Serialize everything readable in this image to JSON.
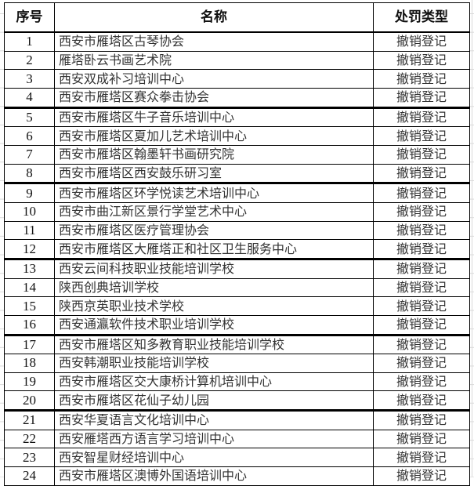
{
  "header": {
    "no": "序号",
    "name": "名称",
    "type": "处罚类型"
  },
  "rows": [
    {
      "no": "1",
      "name": "西安市雁塔区古琴协会",
      "type": "撤销登记"
    },
    {
      "no": "2",
      "name": "雁塔卧云书画艺术院",
      "type": "撤销登记"
    },
    {
      "no": "3",
      "name": "西安双成补习培训中心",
      "type": "撤销登记"
    },
    {
      "no": "4",
      "name": "西安市雁塔区赛众拳击协会",
      "type": "撤销登记"
    },
    {
      "no": "5",
      "name": "西安市雁塔区牛子音乐培训中心",
      "type": "撤销登记"
    },
    {
      "no": "6",
      "name": "西安市雁塔区夏加儿艺术培训中心",
      "type": "撤销登记"
    },
    {
      "no": "7",
      "name": "西安市雁塔区翰墨轩书画研究院",
      "type": "撤销登记"
    },
    {
      "no": "8",
      "name": "西安市雁塔区西安鼓乐研习室",
      "type": "撤销登记"
    },
    {
      "no": "9",
      "name": "西安市雁塔区环学悦读艺术培训中心",
      "type": "撤销登记"
    },
    {
      "no": "10",
      "name": "西安市曲江新区景行学堂艺术中心",
      "type": "撤销登记"
    },
    {
      "no": "11",
      "name": "西安市雁塔区医疗管理协会",
      "type": "撤销登记"
    },
    {
      "no": "12",
      "name": "西安市雁塔区大雁塔正和社区卫生服务中心",
      "type": "撤销登记"
    },
    {
      "no": "13",
      "name": "西安云间科技职业技能培训学校",
      "type": "撤销登记"
    },
    {
      "no": "14",
      "name": "陕西创典培训学校",
      "type": "撤销登记"
    },
    {
      "no": "15",
      "name": "陕西京英职业技术学校",
      "type": "撤销登记"
    },
    {
      "no": "16",
      "name": "西安通瀛软件技术职业培训学校",
      "type": "撤销登记"
    },
    {
      "no": "17",
      "name": "西安市雁塔区知多教育职业技能培训学校",
      "type": "撤销登记"
    },
    {
      "no": "18",
      "name": "西安韩潮职业技能培训学校",
      "type": "撤销登记"
    },
    {
      "no": "19",
      "name": "西安市雁塔区交大康桥计算机培训中心",
      "type": "撤销登记"
    },
    {
      "no": "20",
      "name": "西安市雁塔区花仙子幼儿园",
      "type": "撤销登记"
    },
    {
      "no": "21",
      "name": "西安华夏语言文化培训中心",
      "type": "撤销登记"
    },
    {
      "no": "22",
      "name": "西安雁塔西方语言学习培训中心",
      "type": "撤销登记"
    },
    {
      "no": "23",
      "name": "西安智星财经培训中心",
      "type": "撤销登记"
    },
    {
      "no": "24",
      "name": "西安市雁塔区澳博外国语培训中心",
      "type": "撤销登记"
    }
  ]
}
